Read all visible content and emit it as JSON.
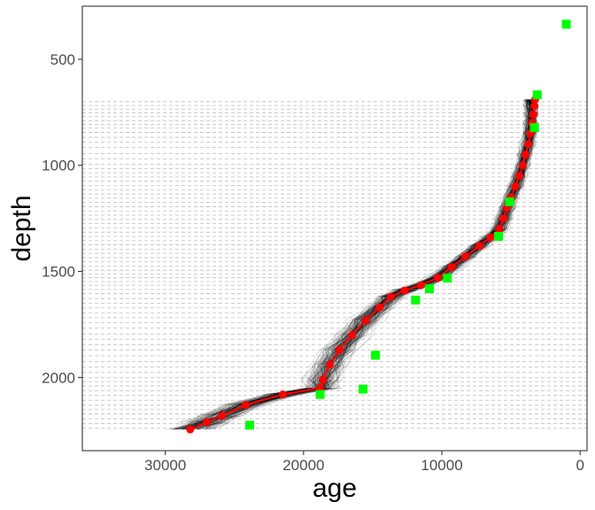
{
  "chart_data": {
    "type": "scatter",
    "xlabel": "age",
    "ylabel": "depth",
    "x_reversed": true,
    "y_reversed": true,
    "xlim": [
      36000,
      -500
    ],
    "ylim": [
      250,
      2345
    ],
    "x_ticks": [
      {
        "value": 30000,
        "label": "30000"
      },
      {
        "value": 20000,
        "label": "20000"
      },
      {
        "value": 10000,
        "label": "10000"
      },
      {
        "value": 0,
        "label": "0"
      }
    ],
    "y_ticks": [
      {
        "value": 500,
        "label": "500"
      },
      {
        "value": 1000,
        "label": "1000"
      },
      {
        "value": 1500,
        "label": "1500"
      },
      {
        "value": 2000,
        "label": "2000"
      }
    ],
    "grid": false,
    "sample_depths": [
      700,
      718,
      735,
      752,
      770,
      790,
      808,
      825,
      845,
      868,
      890,
      915,
      945,
      970,
      995,
      1015,
      1035,
      1055,
      1075,
      1095,
      1115,
      1135,
      1155,
      1175,
      1195,
      1215,
      1235,
      1255,
      1275,
      1295,
      1315,
      1335,
      1355,
      1375,
      1395,
      1415,
      1435,
      1455,
      1475,
      1495,
      1512,
      1530,
      1548,
      1565,
      1585,
      1605,
      1628,
      1650,
      1672,
      1695,
      1718,
      1742,
      1768,
      1795,
      1820,
      1845,
      1870,
      1898,
      1925,
      1950,
      1975,
      2000,
      2020,
      2040,
      2062,
      2085,
      2108,
      2130,
      2150,
      2172,
      2195,
      2218,
      2238
    ],
    "dates": [
      {
        "age": 1000,
        "depth": 335
      },
      {
        "age": 3100,
        "depth": 668
      },
      {
        "age": 3300,
        "depth": 822
      },
      {
        "age": 5100,
        "depth": 1172
      },
      {
        "age": 5900,
        "depth": 1335
      },
      {
        "age": 9600,
        "depth": 1532
      },
      {
        "age": 10900,
        "depth": 1582
      },
      {
        "age": 11900,
        "depth": 1635
      },
      {
        "age": 14800,
        "depth": 1895
      },
      {
        "age": 15700,
        "depth": 2055
      },
      {
        "age": 18800,
        "depth": 2080
      },
      {
        "age": 23900,
        "depth": 2225
      }
    ],
    "median_age_depth": [
      {
        "age": 3250,
        "depth": 690
      },
      {
        "age": 3300,
        "depth": 720
      },
      {
        "age": 3380,
        "depth": 760
      },
      {
        "age": 3480,
        "depth": 800
      },
      {
        "age": 3600,
        "depth": 850
      },
      {
        "age": 3750,
        "depth": 900
      },
      {
        "age": 3950,
        "depth": 950
      },
      {
        "age": 4150,
        "depth": 1000
      },
      {
        "age": 4400,
        "depth": 1050
      },
      {
        "age": 4700,
        "depth": 1100
      },
      {
        "age": 5000,
        "depth": 1150
      },
      {
        "age": 5300,
        "depth": 1200
      },
      {
        "age": 5550,
        "depth": 1250
      },
      {
        "age": 5850,
        "depth": 1300
      },
      {
        "age": 6500,
        "depth": 1340
      },
      {
        "age": 7300,
        "depth": 1380
      },
      {
        "age": 8300,
        "depth": 1430
      },
      {
        "age": 9300,
        "depth": 1480
      },
      {
        "age": 10300,
        "depth": 1530
      },
      {
        "age": 11500,
        "depth": 1565
      },
      {
        "age": 12700,
        "depth": 1590
      },
      {
        "age": 13700,
        "depth": 1620
      },
      {
        "age": 14500,
        "depth": 1670
      },
      {
        "age": 15500,
        "depth": 1730
      },
      {
        "age": 16500,
        "depth": 1800
      },
      {
        "age": 17400,
        "depth": 1870
      },
      {
        "age": 18100,
        "depth": 1940
      },
      {
        "age": 18600,
        "depth": 2010
      },
      {
        "age": 18800,
        "depth": 2050
      },
      {
        "age": 21500,
        "depth": 2080
      },
      {
        "age": 24200,
        "depth": 2130
      },
      {
        "age": 25900,
        "depth": 2180
      },
      {
        "age": 27000,
        "depth": 2210
      },
      {
        "age": 28200,
        "depth": 2245
      }
    ],
    "colors": {
      "panel_border": "#333333",
      "tick": "#333333",
      "tick_label": "#4d4d4d",
      "sample_line": "#bebebe",
      "ensemble": "#000000",
      "median": "#ff0000",
      "date_marker": "#00ff00"
    }
  }
}
